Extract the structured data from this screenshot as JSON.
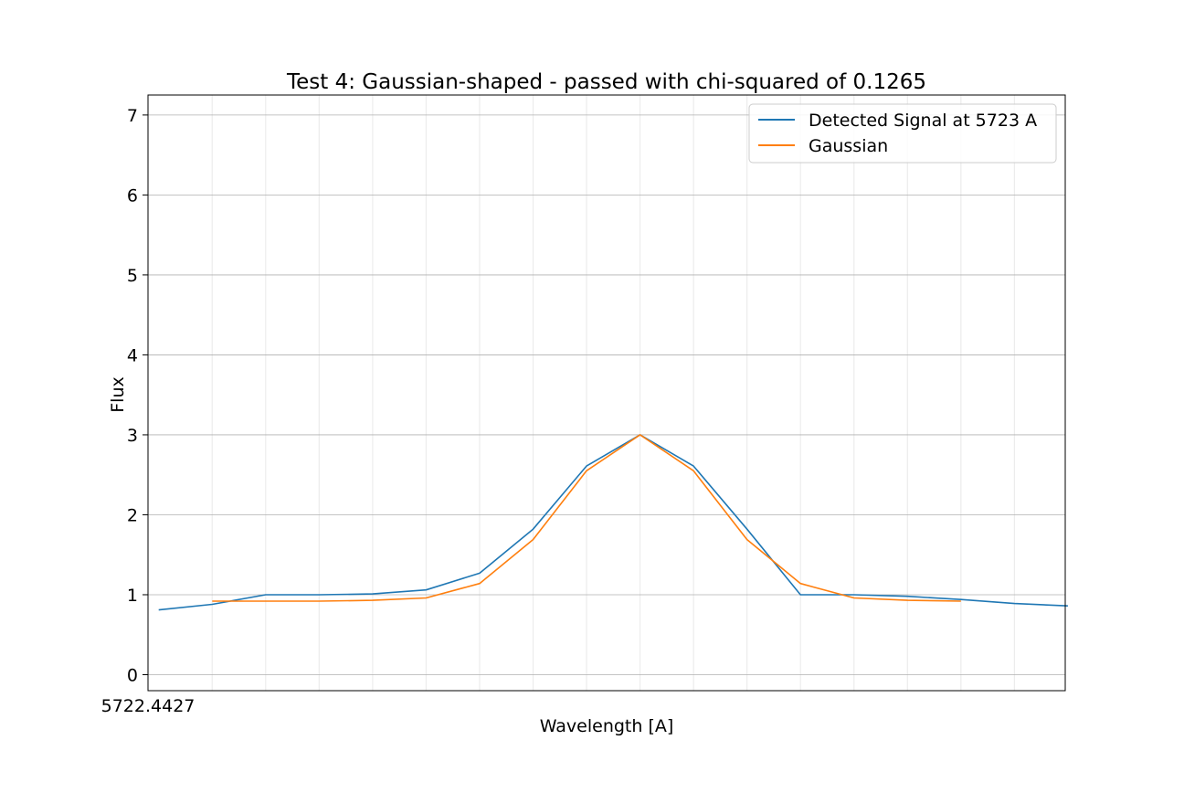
{
  "chart_data": {
    "type": "line",
    "title": "Test 4: Gaussian-shaped - passed with chi-squared of 0.1265",
    "xlabel": "Wavelength [A]",
    "ylabel": "Flux",
    "ylim": [
      -0.2,
      7.25
    ],
    "yticks": [
      0,
      1,
      2,
      3,
      4,
      5,
      6,
      7
    ],
    "xticks": [
      "5722.4427"
    ],
    "grid": true,
    "legend_position": "top-right",
    "series": [
      {
        "name": "Detected Signal at 5723 A",
        "color": "#1f77b4",
        "x": [
          0,
          1,
          2,
          3,
          4,
          5,
          6,
          7,
          8,
          9,
          10,
          11,
          12,
          13,
          14,
          15,
          16,
          17
        ],
        "values": [
          0.81,
          0.88,
          1.0,
          1.0,
          1.01,
          1.06,
          1.27,
          1.82,
          2.61,
          3.0,
          2.61,
          1.82,
          1.0,
          1.0,
          0.98,
          0.94,
          0.89,
          0.86
        ]
      },
      {
        "name": "Gaussian",
        "color": "#ff7f0e",
        "x": [
          1,
          2,
          3,
          4,
          5,
          6,
          7,
          8,
          9,
          10,
          11,
          12,
          13,
          14,
          15
        ],
        "values": [
          0.92,
          0.92,
          0.92,
          0.93,
          0.96,
          1.14,
          1.69,
          2.55,
          3.0,
          2.55,
          1.69,
          1.14,
          0.96,
          0.93,
          0.92
        ]
      }
    ]
  }
}
